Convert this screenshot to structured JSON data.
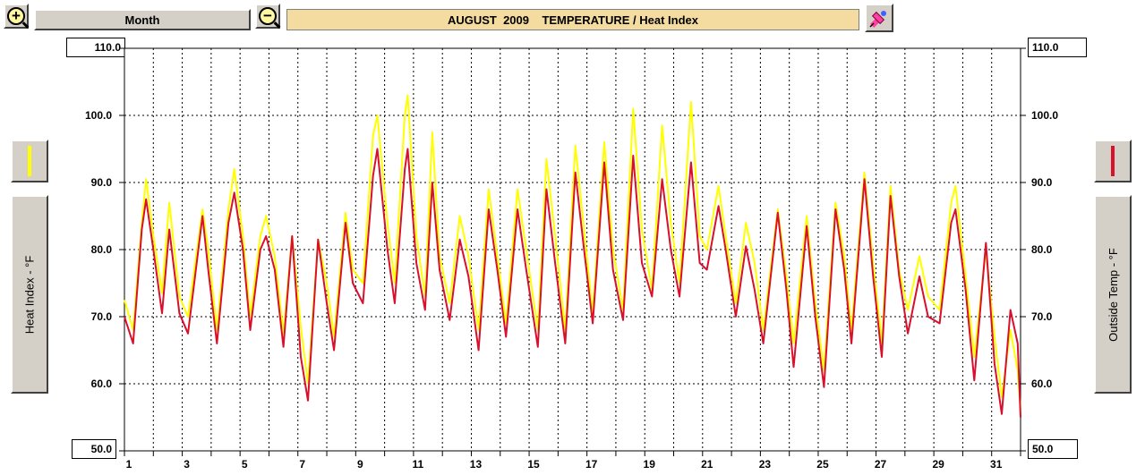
{
  "toolbar": {
    "zoom_in_icon": "zoom-in-icon",
    "zoom_out_icon": "zoom-out-icon",
    "period_label": "Month",
    "title": "AUGUST  2009    TEMPERATURE / Heat Index",
    "pen_icon": "pen-icon"
  },
  "left_axis": {
    "label": "Heat Index - °F",
    "color": "#ffff00"
  },
  "right_axis": {
    "label": "Outside Temp - °F",
    "color": "#d8102c"
  },
  "chart_data": {
    "type": "line",
    "title": "AUGUST  2009    TEMPERATURE / Heat Index",
    "xlabel": "",
    "ylabel_left": "Heat Index - °F",
    "ylabel_right": "Outside Temp - °F",
    "ylim": [
      50,
      110
    ],
    "xlim": [
      1,
      32
    ],
    "y_ticks": [
      "110.0",
      "100.0",
      "90.0",
      "80.0",
      "70.0",
      "60.0",
      "50.0"
    ],
    "x_ticks": [
      "1",
      "3",
      "5",
      "7",
      "9",
      "11",
      "13",
      "15",
      "17",
      "19",
      "21",
      "23",
      "25",
      "27",
      "29",
      "31"
    ],
    "grid": true,
    "series": [
      {
        "color": "#ffff00",
        "points": [
          [
            1.0,
            72.5
          ],
          [
            1.3,
            68.0
          ],
          [
            1.6,
            84.0
          ],
          [
            1.75,
            90.5
          ],
          [
            2.0,
            82.0
          ],
          [
            2.3,
            73.5
          ],
          [
            2.55,
            87.0
          ],
          [
            2.9,
            73.0
          ],
          [
            3.2,
            70.0
          ],
          [
            3.7,
            86.0
          ],
          [
            3.9,
            80.0
          ],
          [
            4.2,
            68.0
          ],
          [
            4.6,
            86.0
          ],
          [
            4.8,
            92.0
          ],
          [
            5.1,
            82.0
          ],
          [
            5.35,
            70.0
          ],
          [
            5.7,
            82.0
          ],
          [
            5.9,
            85.0
          ],
          [
            6.2,
            79.0
          ],
          [
            6.5,
            67.5
          ],
          [
            6.8,
            82.0
          ],
          [
            7.1,
            68.5
          ],
          [
            7.35,
            60.0
          ],
          [
            7.7,
            81.5
          ],
          [
            8.0,
            75.0
          ],
          [
            8.25,
            67.0
          ],
          [
            8.65,
            85.5
          ],
          [
            8.9,
            77.0
          ],
          [
            9.25,
            75.0
          ],
          [
            9.6,
            97.0
          ],
          [
            9.75,
            100.0
          ],
          [
            10.1,
            84.0
          ],
          [
            10.35,
            75.0
          ],
          [
            10.7,
            100.0
          ],
          [
            10.8,
            103.0
          ],
          [
            11.1,
            82.0
          ],
          [
            11.4,
            73.0
          ],
          [
            11.65,
            97.5
          ],
          [
            11.9,
            79.0
          ],
          [
            12.25,
            72.0
          ],
          [
            12.6,
            85.0
          ],
          [
            12.9,
            79.0
          ],
          [
            13.25,
            68.0
          ],
          [
            13.6,
            89.0
          ],
          [
            13.9,
            79.0
          ],
          [
            14.2,
            69.0
          ],
          [
            14.6,
            89.0
          ],
          [
            14.9,
            80.0
          ],
          [
            15.3,
            68.0
          ],
          [
            15.6,
            93.5
          ],
          [
            15.9,
            82.0
          ],
          [
            16.25,
            68.0
          ],
          [
            16.6,
            95.5
          ],
          [
            16.9,
            83.0
          ],
          [
            17.2,
            70.5
          ],
          [
            17.6,
            96.0
          ],
          [
            17.9,
            80.0
          ],
          [
            18.25,
            71.0
          ],
          [
            18.6,
            101.0
          ],
          [
            18.9,
            83.0
          ],
          [
            19.25,
            74.0
          ],
          [
            19.6,
            98.5
          ],
          [
            19.9,
            84.0
          ],
          [
            20.2,
            75.0
          ],
          [
            20.6,
            102.0
          ],
          [
            20.9,
            82.0
          ],
          [
            21.15,
            80.0
          ],
          [
            21.55,
            89.5
          ],
          [
            21.8,
            82.0
          ],
          [
            22.15,
            72.0
          ],
          [
            22.5,
            84.0
          ],
          [
            22.8,
            78.0
          ],
          [
            23.1,
            68.0
          ],
          [
            23.6,
            86.0
          ],
          [
            23.9,
            76.0
          ],
          [
            24.15,
            66.0
          ],
          [
            24.6,
            85.0
          ],
          [
            24.9,
            72.0
          ],
          [
            25.2,
            62.0
          ],
          [
            25.6,
            87.0
          ],
          [
            25.9,
            79.0
          ],
          [
            26.15,
            68.0
          ],
          [
            26.6,
            91.5
          ],
          [
            26.9,
            78.0
          ],
          [
            27.2,
            66.0
          ],
          [
            27.5,
            89.5
          ],
          [
            27.8,
            77.0
          ],
          [
            28.1,
            71.0
          ],
          [
            28.5,
            79.0
          ],
          [
            28.8,
            73.0
          ],
          [
            29.2,
            71.0
          ],
          [
            29.6,
            87.0
          ],
          [
            29.75,
            89.5
          ],
          [
            30.1,
            76.0
          ],
          [
            30.4,
            64.0
          ],
          [
            30.8,
            80.0
          ],
          [
            31.1,
            67.0
          ],
          [
            31.35,
            58.0
          ],
          [
            31.65,
            68.0
          ],
          [
            31.9,
            62.0
          ],
          [
            32.0,
            56.0
          ]
        ]
      },
      {
        "color": "#d8102c",
        "points": [
          [
            1.0,
            70.0
          ],
          [
            1.3,
            66.0
          ],
          [
            1.6,
            83.0
          ],
          [
            1.75,
            87.5
          ],
          [
            2.0,
            80.0
          ],
          [
            2.3,
            70.5
          ],
          [
            2.55,
            83.0
          ],
          [
            2.9,
            70.5
          ],
          [
            3.2,
            67.5
          ],
          [
            3.7,
            85.0
          ],
          [
            3.9,
            77.0
          ],
          [
            4.2,
            66.0
          ],
          [
            4.6,
            84.0
          ],
          [
            4.8,
            88.5
          ],
          [
            5.1,
            80.0
          ],
          [
            5.35,
            68.0
          ],
          [
            5.7,
            80.0
          ],
          [
            5.9,
            82.0
          ],
          [
            6.2,
            77.0
          ],
          [
            6.5,
            65.5
          ],
          [
            6.8,
            82.0
          ],
          [
            7.1,
            64.0
          ],
          [
            7.35,
            57.5
          ],
          [
            7.7,
            81.5
          ],
          [
            8.0,
            72.0
          ],
          [
            8.25,
            65.0
          ],
          [
            8.65,
            84.0
          ],
          [
            8.9,
            75.0
          ],
          [
            9.25,
            72.0
          ],
          [
            9.6,
            91.0
          ],
          [
            9.75,
            95.0
          ],
          [
            10.1,
            80.0
          ],
          [
            10.35,
            72.0
          ],
          [
            10.7,
            92.0
          ],
          [
            10.8,
            95.0
          ],
          [
            11.1,
            78.0
          ],
          [
            11.4,
            71.0
          ],
          [
            11.65,
            90.0
          ],
          [
            11.9,
            77.0
          ],
          [
            12.25,
            69.5
          ],
          [
            12.6,
            81.5
          ],
          [
            12.9,
            76.0
          ],
          [
            13.25,
            65.0
          ],
          [
            13.6,
            86.0
          ],
          [
            13.9,
            77.0
          ],
          [
            14.2,
            67.0
          ],
          [
            14.6,
            86.0
          ],
          [
            14.9,
            77.0
          ],
          [
            15.3,
            65.5
          ],
          [
            15.6,
            89.0
          ],
          [
            15.9,
            78.0
          ],
          [
            16.25,
            66.0
          ],
          [
            16.6,
            91.5
          ],
          [
            16.9,
            80.0
          ],
          [
            17.2,
            69.0
          ],
          [
            17.6,
            93.0
          ],
          [
            17.9,
            77.0
          ],
          [
            18.25,
            69.5
          ],
          [
            18.6,
            94.0
          ],
          [
            18.9,
            78.0
          ],
          [
            19.25,
            73.0
          ],
          [
            19.6,
            90.5
          ],
          [
            19.9,
            80.0
          ],
          [
            20.2,
            73.0
          ],
          [
            20.6,
            93.0
          ],
          [
            20.9,
            78.0
          ],
          [
            21.15,
            77.0
          ],
          [
            21.55,
            86.5
          ],
          [
            21.8,
            80.0
          ],
          [
            22.15,
            70.0
          ],
          [
            22.5,
            80.5
          ],
          [
            22.8,
            74.0
          ],
          [
            23.1,
            66.0
          ],
          [
            23.6,
            85.5
          ],
          [
            23.9,
            74.0
          ],
          [
            24.15,
            62.5
          ],
          [
            24.6,
            83.5
          ],
          [
            24.9,
            70.0
          ],
          [
            25.2,
            59.5
          ],
          [
            25.6,
            86.0
          ],
          [
            25.9,
            77.0
          ],
          [
            26.15,
            66.0
          ],
          [
            26.6,
            90.5
          ],
          [
            26.9,
            76.0
          ],
          [
            27.2,
            64.0
          ],
          [
            27.5,
            88.0
          ],
          [
            27.8,
            76.0
          ],
          [
            28.1,
            67.5
          ],
          [
            28.5,
            76.0
          ],
          [
            28.8,
            70.0
          ],
          [
            29.2,
            69.0
          ],
          [
            29.6,
            84.0
          ],
          [
            29.75,
            86.0
          ],
          [
            30.1,
            74.0
          ],
          [
            30.4,
            60.5
          ],
          [
            30.8,
            81.0
          ],
          [
            31.1,
            63.0
          ],
          [
            31.35,
            55.5
          ],
          [
            31.65,
            71.0
          ],
          [
            31.9,
            66.0
          ],
          [
            32.0,
            55.0
          ]
        ]
      }
    ]
  }
}
